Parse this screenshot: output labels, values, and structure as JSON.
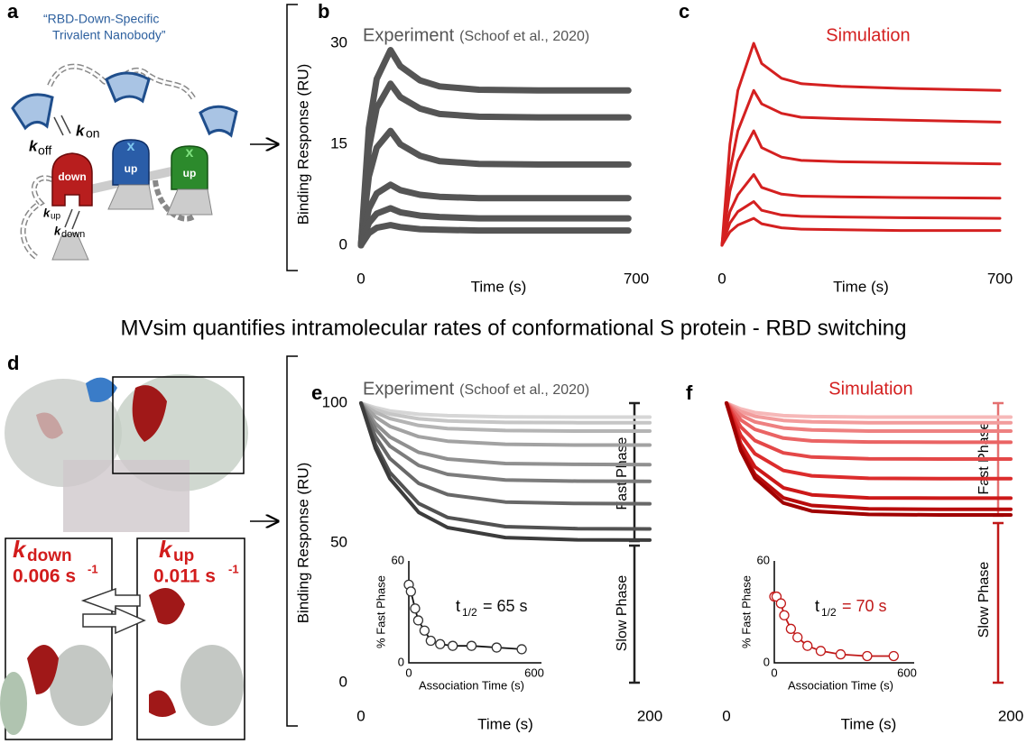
{
  "diagram_a": {
    "panel": "a",
    "nanobody_label": [
      "“RBD-Down-Specific",
      "Trivalent Nanobody”"
    ],
    "rates": [
      {
        "k": "k",
        "sub": "on"
      },
      {
        "k": "k",
        "sub": "off"
      },
      {
        "k": "k",
        "sub": "up"
      },
      {
        "k": "k",
        "sub": "down"
      }
    ],
    "domains": [
      "down",
      "up",
      "up"
    ],
    "bound": [
      "x",
      "x"
    ]
  },
  "headline": "MVsim quantifies intramolecular rates of conformational S protein - RBD switching",
  "diagram_d": {
    "panel": "d",
    "rates": [
      {
        "k": "k",
        "sub": "down",
        "value": "0.006 s",
        "exp": "-1"
      },
      {
        "k": "k",
        "sub": "up",
        "value": "0.011 s",
        "exp": "-1"
      }
    ]
  },
  "chart_data": [
    {
      "type": "line",
      "panel": "b",
      "title": "Experiment",
      "subtitle": "(Schoof et al., 2020)",
      "title_color": "#555555",
      "xlabel": "Time (s)",
      "ylabel": "Binding Response (RU)",
      "x": [
        0,
        20,
        40,
        75,
        100,
        150,
        200,
        300,
        450,
        680
      ],
      "series": [
        {
          "color": "#555555",
          "values": [
            0,
            17.4,
            24.7,
            29,
            26.6,
            24.5,
            23.6,
            23.1,
            23,
            23
          ]
        },
        {
          "color": "#555555",
          "values": [
            0,
            14.4,
            20.4,
            24,
            22,
            20.3,
            19.5,
            19.1,
            19,
            19
          ]
        },
        {
          "color": "#555555",
          "values": [
            0,
            10.2,
            14.5,
            17,
            15,
            13.3,
            12.5,
            12.1,
            12,
            12
          ]
        },
        {
          "color": "#555555",
          "values": [
            0,
            5.4,
            7.7,
            9,
            8.2,
            7.5,
            7.2,
            7,
            7,
            7
          ]
        },
        {
          "color": "#555555",
          "values": [
            0,
            3.3,
            4.7,
            5.5,
            4.9,
            4.4,
            4.2,
            4,
            4,
            4
          ]
        },
        {
          "color": "#555555",
          "values": [
            0,
            1.8,
            2.6,
            3,
            2.7,
            2.4,
            2.3,
            2.2,
            2.2,
            2.2
          ]
        }
      ],
      "xlim": [
        0,
        700
      ],
      "ylim": [
        0,
        30
      ],
      "xticks": [
        0,
        700
      ],
      "yticks": [
        0,
        15,
        30
      ],
      "line_width": 7
    },
    {
      "type": "line",
      "panel": "c",
      "title": "Simulation",
      "title_color": "#d42020",
      "xlabel": "Time (s)",
      "x": [
        0,
        20,
        40,
        80,
        100,
        150,
        200,
        300,
        450,
        700
      ],
      "series": [
        {
          "color": "#d42020",
          "values": [
            0,
            15,
            23,
            30,
            27,
            24.8,
            24,
            23.6,
            23.3,
            23
          ]
        },
        {
          "color": "#d42020",
          "values": [
            0,
            11,
            17,
            23,
            21,
            19.6,
            19,
            18.8,
            18.6,
            18.3
          ]
        },
        {
          "color": "#d42020",
          "values": [
            0,
            8,
            12.5,
            17,
            14.5,
            13.1,
            12.6,
            12.4,
            12.3,
            12.1
          ]
        },
        {
          "color": "#d42020",
          "values": [
            0,
            5,
            7.5,
            10.5,
            8.6,
            7.6,
            7.3,
            7.2,
            7.1,
            7
          ]
        },
        {
          "color": "#d42020",
          "values": [
            0,
            3.3,
            5,
            6.5,
            5.2,
            4.5,
            4.3,
            4.2,
            4.1,
            4
          ]
        },
        {
          "color": "#d42020",
          "values": [
            0,
            2,
            3,
            4,
            3.2,
            2.6,
            2.4,
            2.3,
            2.2,
            2.2
          ]
        }
      ],
      "xlim": [
        0,
        700
      ],
      "ylim": [
        0,
        30
      ],
      "xticks": [
        0,
        700
      ],
      "line_width": 3
    },
    {
      "type": "line",
      "panel": "e",
      "title": "Experiment",
      "subtitle": "(Schoof et al., 2020)",
      "title_color": "#555555",
      "xlabel": "Time (s)",
      "ylabel": "Binding Response (RU)",
      "x": [
        0,
        10,
        20,
        40,
        60,
        100,
        150,
        200
      ],
      "series": [
        {
          "color": "#d6d6d6",
          "values": [
            100,
            98.4,
            97.2,
            96.0,
            95.5,
            95.1,
            95,
            95
          ]
        },
        {
          "color": "#c6c6c6",
          "values": [
            100,
            97.7,
            96.1,
            94.4,
            93.6,
            93.1,
            93,
            93
          ]
        },
        {
          "color": "#b4b4b4",
          "values": [
            100,
            96.7,
            94.5,
            92.0,
            90.9,
            90.2,
            90,
            90
          ]
        },
        {
          "color": "#a2a2a2",
          "values": [
            100,
            95.1,
            91.7,
            88.0,
            86.4,
            85.3,
            85,
            85
          ]
        },
        {
          "color": "#909090",
          "values": [
            100,
            92.7,
            87.9,
            82.4,
            80.0,
            78.4,
            78.1,
            78
          ]
        },
        {
          "color": "#7c7c7c",
          "values": [
            100,
            90.8,
            84.6,
            77.7,
            74.5,
            72.5,
            72.1,
            72
          ]
        },
        {
          "color": "#686868",
          "values": [
            100,
            88.1,
            80.2,
            71.3,
            67.3,
            64.6,
            64.1,
            64
          ]
        },
        {
          "color": "#525252",
          "values": [
            100,
            85.2,
            75.2,
            64.1,
            59.1,
            55.8,
            55.1,
            55
          ]
        },
        {
          "color": "#3c3c3c",
          "values": [
            100,
            83.8,
            73.0,
            60.9,
            55.5,
            51.9,
            51.1,
            51
          ]
        }
      ],
      "xlim": [
        0,
        200
      ],
      "ylim": [
        0,
        100
      ],
      "xticks": [
        0,
        200
      ],
      "yticks": [
        0,
        50,
        100
      ],
      "line_width": 4,
      "fast_label": "Fast Phase",
      "slow_label": "Slow Phase"
    },
    {
      "type": "line",
      "panel": "f",
      "title": "Simulation",
      "title_color": "#d42020",
      "xlabel": "Time (s)",
      "x": [
        0,
        10,
        20,
        40,
        60,
        100,
        150,
        200
      ],
      "series": [
        {
          "color": "#f6b8b8",
          "values": [
            100,
            97.9,
            96.6,
            95.5,
            95.2,
            95,
            95,
            95
          ]
        },
        {
          "color": "#f29c9c",
          "values": [
            100,
            97.0,
            95.3,
            93.8,
            93.3,
            93,
            93,
            93
          ]
        },
        {
          "color": "#ee8080",
          "values": [
            100,
            95.7,
            93.3,
            91.1,
            90.4,
            90,
            90,
            90
          ]
        },
        {
          "color": "#ea6464",
          "values": [
            100,
            94.0,
            90.6,
            87.5,
            86.5,
            86.1,
            86,
            86
          ]
        },
        {
          "color": "#e44848",
          "values": [
            100,
            91.5,
            86.6,
            82.2,
            80.7,
            80.1,
            80,
            80
          ]
        },
        {
          "color": "#dc2c2c",
          "values": [
            100,
            88.5,
            81.9,
            75.9,
            74.0,
            73.1,
            73,
            73
          ]
        },
        {
          "color": "#cc1818",
          "values": [
            100,
            85.5,
            77.2,
            69.7,
            67.2,
            66.1,
            66,
            66
          ]
        },
        {
          "color": "#b80c0c",
          "values": [
            100,
            83.8,
            74.5,
            66.1,
            63.4,
            62.2,
            62,
            62
          ]
        },
        {
          "color": "#a00000",
          "values": [
            100,
            83.0,
            73.2,
            64.3,
            61.4,
            60.2,
            60,
            60
          ]
        }
      ],
      "xlim": [
        0,
        200
      ],
      "ylim": [
        0,
        100
      ],
      "xticks": [
        0,
        200
      ],
      "line_width": 4,
      "fast_label": "Fast Phase",
      "slow_label": "Slow Phase"
    },
    {
      "type": "scatter",
      "xlabel": "Association Time (s)",
      "ylabel": "% Fast Phase",
      "x": [
        0,
        10,
        30,
        45,
        75,
        105,
        150,
        210,
        300,
        420,
        540
      ],
      "values": [
        46,
        42,
        32,
        25,
        19,
        13,
        11,
        10,
        10,
        9,
        8
      ],
      "color": "#333333",
      "line_color": "#111111",
      "fit_line": true,
      "xlim": [
        0,
        600
      ],
      "ylim": [
        0,
        60
      ],
      "xticks": [
        0,
        600
      ],
      "yticks": [
        0,
        60
      ],
      "annotation": {
        "t": "t",
        "sub": "1/2",
        "text": "= 65 s"
      },
      "annotation_color": "#111111"
    },
    {
      "type": "scatter",
      "xlabel": "Association Time (s)",
      "ylabel": "% Fast Phase",
      "x": [
        0,
        10,
        30,
        45,
        75,
        105,
        150,
        210,
        300,
        420,
        540
      ],
      "values": [
        39,
        39,
        35,
        28,
        20,
        15,
        10,
        7,
        5,
        4,
        4
      ],
      "color": "#c01818",
      "line_color": "#c01818",
      "fit_line": true,
      "xlim": [
        0,
        600
      ],
      "ylim": [
        0,
        60
      ],
      "xticks": [
        0,
        600
      ],
      "yticks": [
        0,
        60
      ],
      "annotation": {
        "t": "t",
        "sub": "1/2",
        "text": "= 70 s"
      },
      "annotation_color": "#c01818"
    }
  ]
}
